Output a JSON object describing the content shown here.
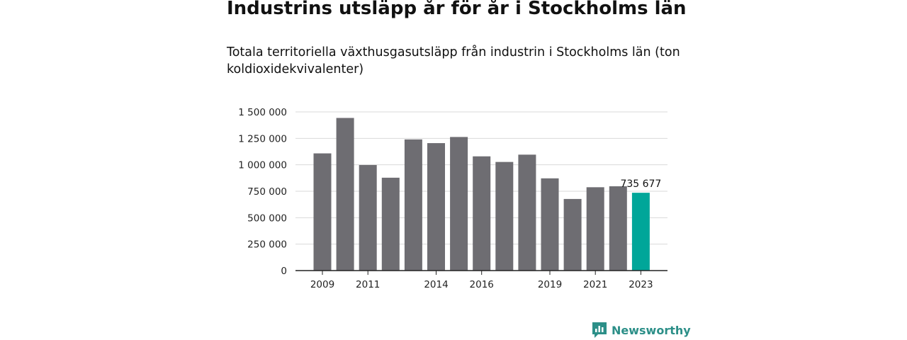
{
  "title": "Industrins utsläpp år för år i Stockholms län",
  "subtitle": "Totala territoriella växthusgasutsläpp från industrin i Stockholms län (ton koldioxidekvivalenter)",
  "brand": {
    "name": "Newsworthy",
    "icon": "newsworthy-logo-icon"
  },
  "colors": {
    "bar": "#6e6d72",
    "highlight": "#00a699",
    "grid": "#d9d9d9",
    "axis": "#222222",
    "brand": "#2c8f88"
  },
  "chart_data": {
    "type": "bar",
    "title": "",
    "xlabel": "",
    "ylabel": "",
    "categories": [
      "2009",
      "2010",
      "2011",
      "2012",
      "2013",
      "2014",
      "2015",
      "2016",
      "2017",
      "2018",
      "2019",
      "2020",
      "2021",
      "2022",
      "2023"
    ],
    "x_tick_labels": [
      "2009",
      "2011",
      "2014",
      "2016",
      "2019",
      "2021",
      "2023"
    ],
    "values": [
      1108000,
      1443000,
      998000,
      878000,
      1240000,
      1205000,
      1263000,
      1080000,
      1027000,
      1096000,
      872000,
      677000,
      788000,
      797000,
      735677
    ],
    "highlight_index": 14,
    "data_labels": [
      {
        "category": "2023",
        "text": "735 677"
      }
    ],
    "ylim": [
      0,
      1500000
    ],
    "y_ticks": [
      0,
      250000,
      500000,
      750000,
      1000000,
      1250000,
      1500000
    ],
    "y_tick_labels": [
      "0",
      "250 000",
      "500 000",
      "750 000",
      "1 000 000",
      "1 250 000",
      "1 500 000"
    ],
    "grid": true,
    "legend": "none"
  }
}
